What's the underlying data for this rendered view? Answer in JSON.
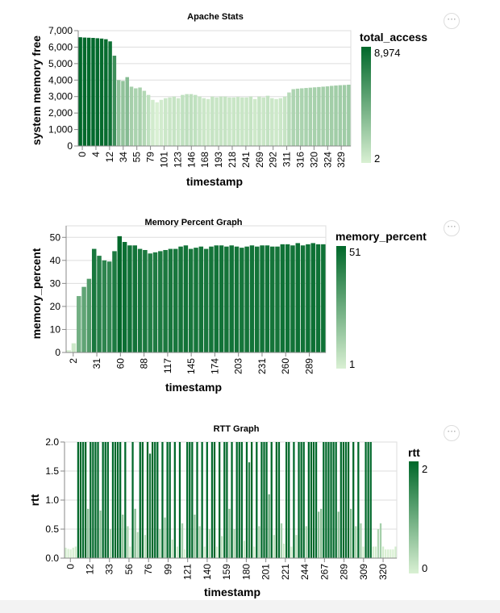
{
  "colors": {
    "light": "#d9f0d3",
    "dark": "#00682a",
    "grid": "#dddddd"
  },
  "actions_icon": "more-horizontal-icon",
  "actions_label": "···",
  "chart_data": [
    {
      "type": "bar",
      "title": "Apache Stats",
      "xlabel": "timestamp",
      "ylabel": "system memory free",
      "ylim": [
        0,
        7000
      ],
      "yticks": [
        0,
        1000,
        2000,
        3000,
        4000,
        5000,
        6000,
        7000
      ],
      "ytick_labels": [
        "0",
        "1,000",
        "2,000",
        "3,000",
        "4,000",
        "5,000",
        "6,000",
        "7,000"
      ],
      "xtick_labels": [
        "0",
        "4",
        "12",
        "34",
        "55",
        "79",
        "101",
        "123",
        "146",
        "168",
        "193",
        "218",
        "241",
        "269",
        "292",
        "311",
        "316",
        "320",
        "324",
        "329"
      ],
      "values": [
        6600,
        6580,
        6570,
        6560,
        6540,
        6520,
        6480,
        6350,
        5480,
        4000,
        3950,
        4180,
        3600,
        3500,
        3550,
        3350,
        3100,
        2800,
        2650,
        2800,
        2900,
        2950,
        3000,
        2900,
        3100,
        3150,
        3150,
        3100,
        3000,
        2900,
        2850,
        3000,
        2950,
        3000,
        3000,
        2950,
        2950,
        2980,
        2950,
        2950,
        3000,
        2850,
        3000,
        2950,
        3050,
        2900,
        2850,
        2900,
        3000,
        3250,
        3450,
        3480,
        3500,
        3520,
        3540,
        3560,
        3580,
        3600,
        3620,
        3650,
        3670,
        3690,
        3700,
        3720
      ],
      "legend": {
        "title": "total_access",
        "max_label": "8,974",
        "min_label": "2"
      }
    },
    {
      "type": "bar",
      "title": "Memory Percent Graph",
      "xlabel": "timestamp",
      "ylabel": "memory_percent",
      "ylim": [
        0,
        55
      ],
      "yticks": [
        0,
        10,
        20,
        30,
        40,
        50
      ],
      "ytick_labels": [
        "0",
        "10",
        "20",
        "30",
        "40",
        "50"
      ],
      "xtick_labels": [
        "2",
        "31",
        "60",
        "88",
        "117",
        "145",
        "174",
        "203",
        "231",
        "260",
        "289"
      ],
      "values": [
        1,
        4,
        24.5,
        28.5,
        32,
        45,
        42,
        40,
        39.5,
        44,
        50.5,
        48,
        46.5,
        46.5,
        45,
        44.5,
        43,
        43.5,
        44,
        44.5,
        45,
        45,
        46,
        46.5,
        45,
        45.5,
        46,
        45,
        46,
        46.5,
        46.5,
        46,
        46.5,
        46,
        45.5,
        46,
        46.5,
        46,
        46.5,
        46.5,
        46,
        46,
        47,
        47,
        46.5,
        47.5,
        46.5,
        47,
        47.5,
        47,
        47
      ],
      "legend": {
        "title": "memory_percent",
        "max_label": "51",
        "min_label": "1"
      }
    },
    {
      "type": "bar",
      "title": "RTT Graph",
      "xlabel": "timestamp",
      "ylabel": "rtt",
      "ylim": [
        0,
        2
      ],
      "yticks": [
        0,
        0.5,
        1,
        1.5,
        2
      ],
      "ytick_labels": [
        "0.0",
        "0.5",
        "1.0",
        "1.5",
        "2.0"
      ],
      "xtick_labels": [
        "0",
        "12",
        "33",
        "56",
        "76",
        "99",
        "121",
        "140",
        "159",
        "180",
        "201",
        "221",
        "244",
        "267",
        "289",
        "309",
        "320"
      ],
      "values": [
        0.18,
        0.16,
        0.15,
        0.18,
        0.2,
        2,
        2,
        2,
        2,
        0.85,
        2,
        2,
        2,
        2,
        0.82,
        2,
        2,
        2,
        0.5,
        2,
        2,
        2,
        2,
        0.75,
        2,
        0.55,
        0.2,
        2,
        0.85,
        0.45,
        2,
        2,
        0.4,
        2,
        1.8,
        2,
        2,
        2,
        0.5,
        2,
        0.7,
        2,
        2,
        0.32,
        2,
        0.2,
        2,
        0.6,
        0.15,
        2,
        2,
        2,
        0.75,
        2,
        0.55,
        2,
        0.2,
        2,
        0.5,
        2,
        2,
        0.2,
        2,
        0.38,
        2,
        2,
        0.85,
        2,
        0.5,
        2,
        2,
        2,
        0.3,
        2,
        1.65,
        2,
        0.2,
        2,
        0.55,
        2,
        2,
        2,
        1.1,
        2,
        0.4,
        2,
        2,
        0.6,
        0.25,
        2,
        2,
        0.2,
        2,
        0.4,
        2,
        2,
        2,
        0.55,
        2,
        2,
        2,
        2,
        0.8,
        0.85,
        2,
        2,
        2,
        2,
        2,
        2,
        0.8,
        2,
        2,
        2,
        2,
        0.85,
        2,
        0.55,
        2,
        0.6,
        0.2,
        2,
        2,
        2,
        0.2,
        0.2,
        0.5,
        0.6,
        0.2,
        0.15,
        0.15,
        0.15,
        0.15,
        0.2
      ],
      "legend": {
        "title": "rtt",
        "max_label": "2",
        "min_label": "0"
      }
    }
  ]
}
